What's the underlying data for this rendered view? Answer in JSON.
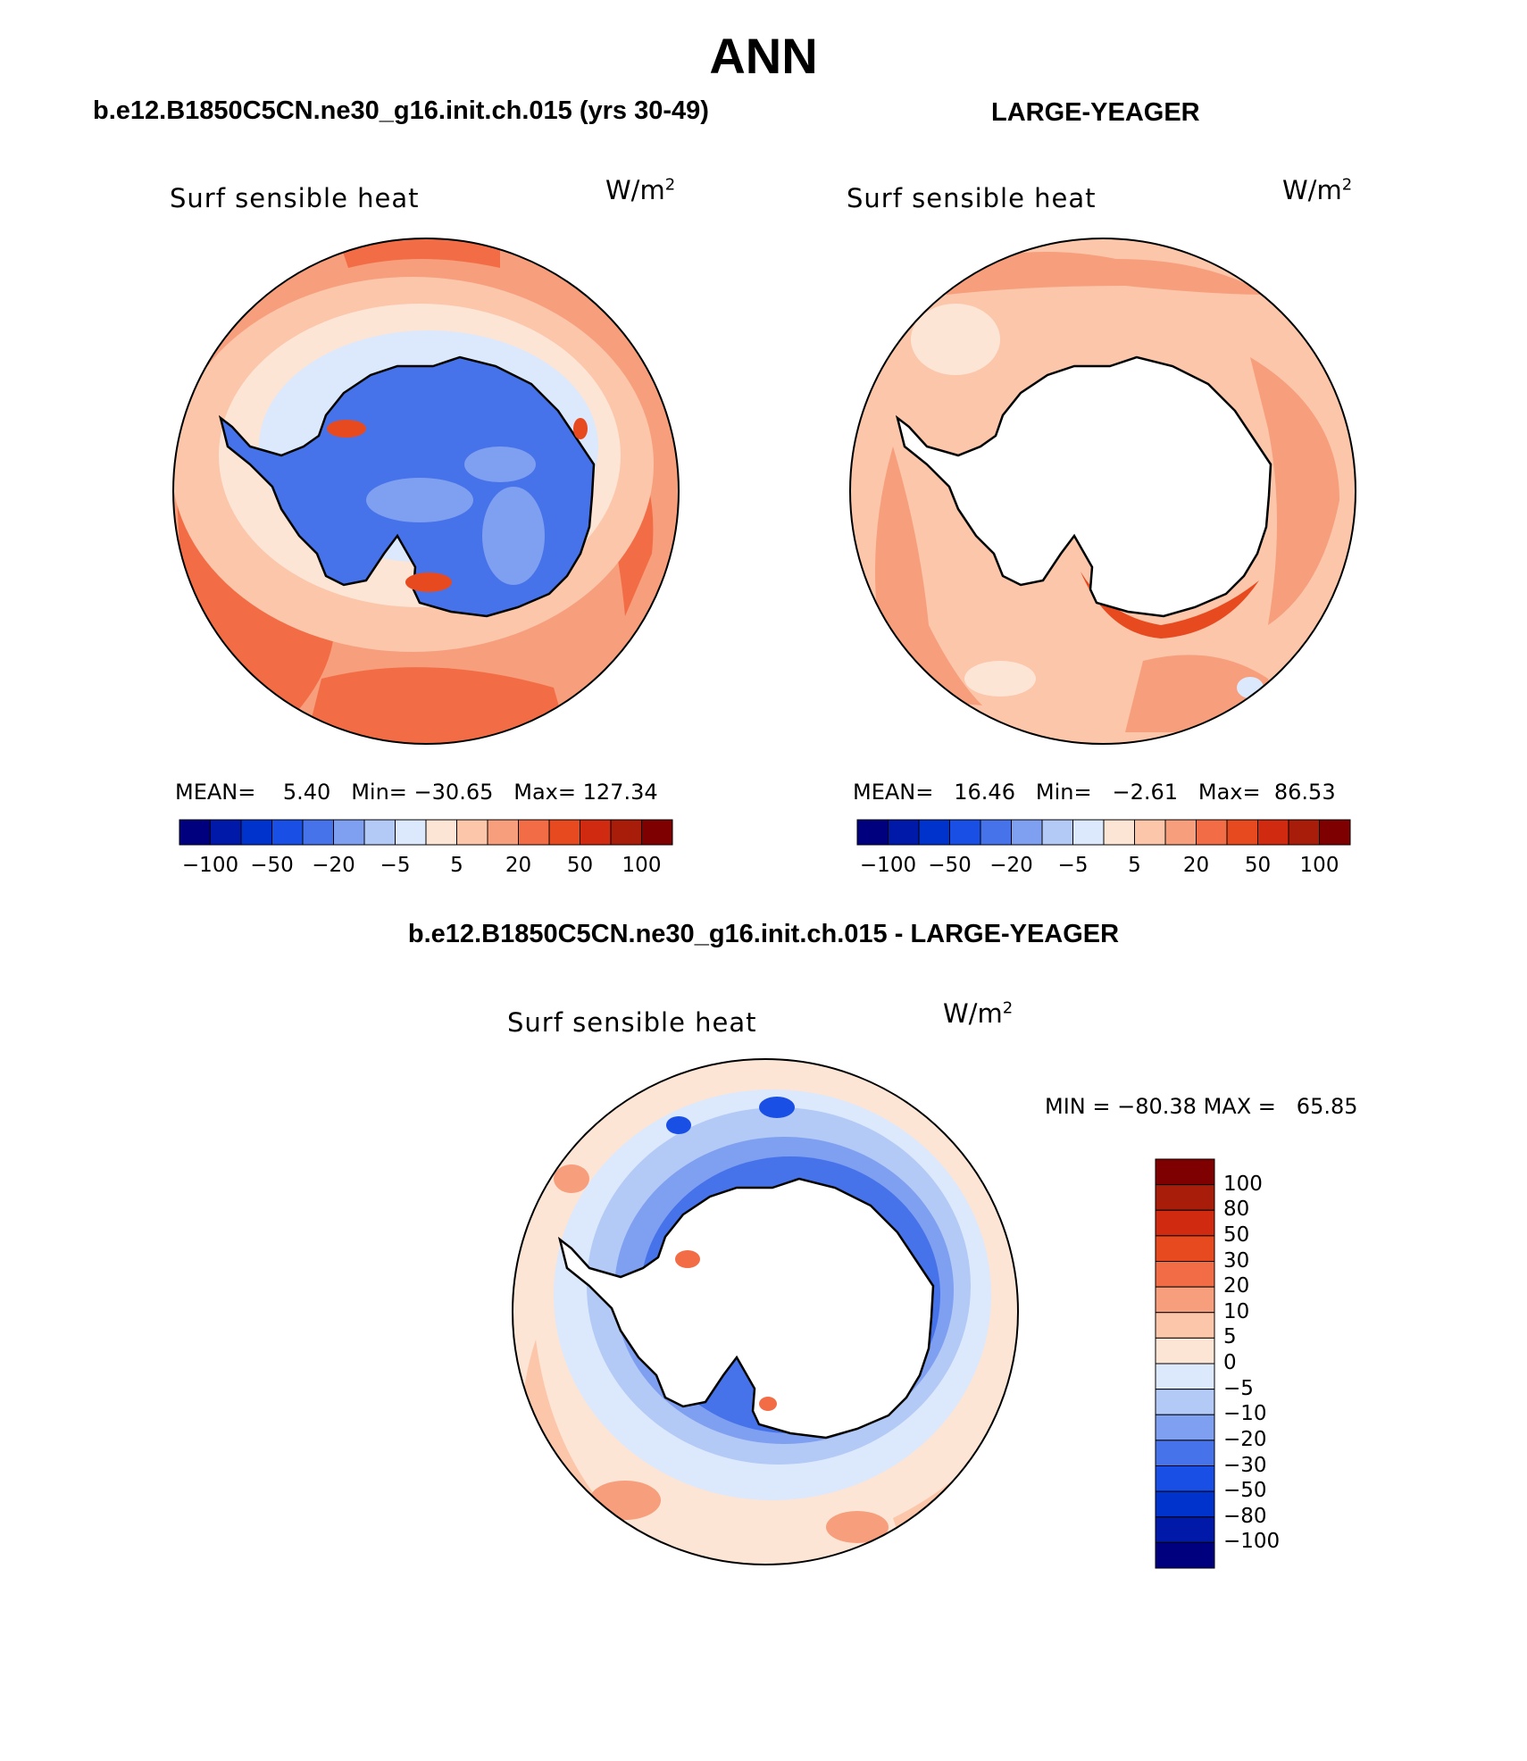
{
  "figure": {
    "title": "ANN",
    "colors": {
      "land": "#ffffff",
      "coast": "#000000",
      "scale": [
        "#00007f",
        "#0019a8",
        "#0033cc",
        "#1a4fe6",
        "#4773ea",
        "#7f9ff0",
        "#b3c9f6",
        "#dce8fb",
        "#fde5d6",
        "#fbc6aa",
        "#f79e7c",
        "#f26d46",
        "#e84a20",
        "#d02a10",
        "#a81d09",
        "#7f0000"
      ]
    }
  },
  "panels": {
    "model": {
      "header": "b.e12.B1850C5CN.ne30_g16.init.ch.015 (yrs 30-49)",
      "variable": "Surf sensible heat",
      "units": "W/m",
      "units_sup": "2",
      "mean_label": "MEAN=",
      "mean_value": "5.40",
      "min_label": "Min=",
      "min_value": "−30.65",
      "max_label": "Max=",
      "max_value": "127.34",
      "colorbar_ticks": [
        "−100",
        "−50",
        "−20",
        "−5",
        "5",
        "20",
        "50",
        "100"
      ]
    },
    "obs": {
      "header": "LARGE-YEAGER",
      "variable": "Surf sensible heat",
      "units": "W/m",
      "units_sup": "2",
      "mean_label": "MEAN=",
      "mean_value": "16.46",
      "min_label": "Min=",
      "min_value": "−2.61",
      "max_label": "Max=",
      "max_value": "86.53",
      "colorbar_ticks": [
        "−100",
        "−50",
        "−20",
        "−5",
        "5",
        "20",
        "50",
        "100"
      ]
    },
    "diff": {
      "header": "b.e12.B1850C5CN.ne30_g16.init.ch.015 - LARGE-YEAGER",
      "variable": "Surf sensible heat",
      "units": "W/m",
      "units_sup": "2",
      "min_label": "MIN =",
      "min_value": "−80.38",
      "max_label": "MAX =",
      "max_value": "65.85",
      "colorbar_ticks": [
        "100",
        "80",
        "50",
        "30",
        "20",
        "10",
        "5",
        "0",
        "−5",
        "−10",
        "−20",
        "−30",
        "−50",
        "−80",
        "−100"
      ]
    }
  }
}
